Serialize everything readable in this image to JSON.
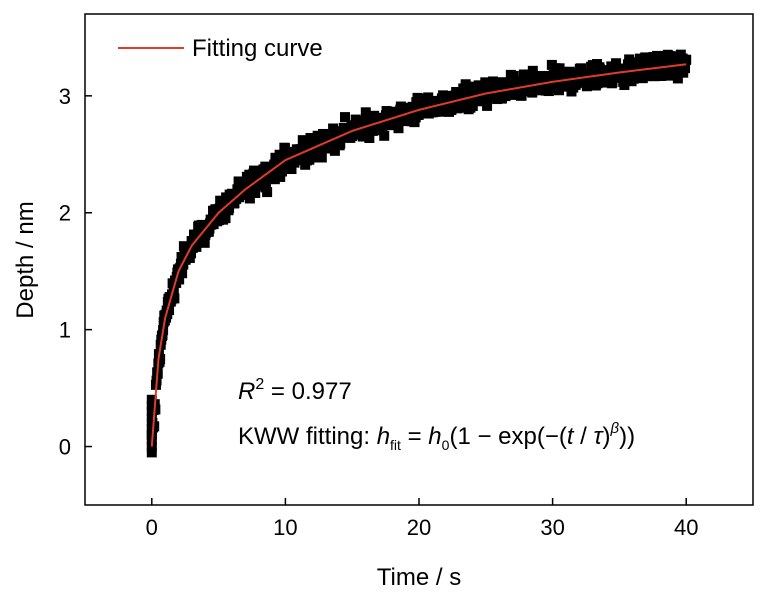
{
  "chart_data": {
    "type": "scatter",
    "xlabel": "Time / s",
    "ylabel": "Depth / nm",
    "xlim": [
      -5,
      45
    ],
    "ylim": [
      -0.5,
      3.7
    ],
    "xticks": [
      0,
      10,
      20,
      30,
      40
    ],
    "yticks": [
      0,
      1,
      2,
      3
    ],
    "grid": false,
    "legend": {
      "position": "top-left",
      "entries": [
        "Fitting curve"
      ]
    },
    "series": [
      {
        "kind": "scatter",
        "marker": "square",
        "color": "#000000",
        "x_range": [
          0,
          40
        ],
        "sampled_points": [
          [
            0,
            0
          ],
          [
            0.5,
            0.75
          ],
          [
            1,
            1.1
          ],
          [
            2,
            1.5
          ],
          [
            3,
            1.72
          ],
          [
            5,
            2.0
          ],
          [
            7,
            2.2
          ],
          [
            10,
            2.45
          ],
          [
            15,
            2.7
          ],
          [
            20,
            2.88
          ],
          [
            25,
            3.02
          ],
          [
            30,
            3.12
          ],
          [
            35,
            3.2
          ],
          [
            40,
            3.27
          ]
        ]
      },
      {
        "name": "Fitting curve",
        "kind": "line",
        "color": "#e03c28",
        "model": "KWW",
        "points": [
          [
            0,
            0
          ],
          [
            0.5,
            0.75
          ],
          [
            1,
            1.1
          ],
          [
            2,
            1.5
          ],
          [
            3,
            1.72
          ],
          [
            5,
            2.0
          ],
          [
            7,
            2.2
          ],
          [
            10,
            2.45
          ],
          [
            15,
            2.7
          ],
          [
            20,
            2.88
          ],
          [
            25,
            3.02
          ],
          [
            30,
            3.12
          ],
          [
            35,
            3.2
          ],
          [
            40,
            3.27
          ]
        ]
      }
    ],
    "annotations": {
      "r2_value": " = 0.977",
      "kww_prefix": "KWW fitting: ",
      "eq_h": "h",
      "eq_fit_sub": "fit",
      "eq_equals": " = ",
      "eq_h0": "h",
      "eq_zero_sub": "0",
      "eq_mid": "(1 − exp(−(",
      "eq_t": "t",
      "eq_slash": " / ",
      "eq_tau": "τ",
      "eq_close": ")",
      "eq_beta": "β",
      "eq_end": "))",
      "r_symbol": "R",
      "r_sup": "2"
    }
  }
}
